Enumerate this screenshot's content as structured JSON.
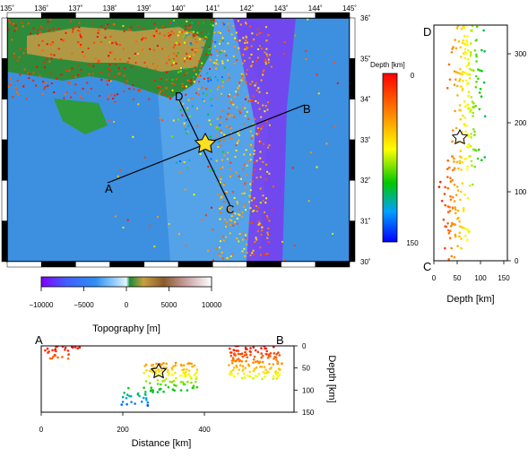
{
  "main_map": {
    "lon_ticks": [
      "135˚",
      "136˚",
      "137˚",
      "138˚",
      "139˚",
      "140˚",
      "141˚",
      "142˚",
      "143˚",
      "144˚",
      "145˚"
    ],
    "lat_ticks": [
      "36˚",
      "35˚",
      "34˚",
      "33˚",
      "32˚",
      "31˚",
      "30˚"
    ],
    "lon_range": [
      135,
      145
    ],
    "lat_range": [
      30,
      36
    ],
    "profile_labels": {
      "a": "A",
      "b": "B",
      "c": "C",
      "d": "D"
    },
    "epicenter_marker": "star-icon"
  },
  "depth_colorbar": {
    "title": "Depth [km]",
    "tick_top": "0",
    "tick_bottom": "150",
    "range": [
      0,
      150
    ],
    "colors": [
      "#ff0000",
      "#ff8000",
      "#ffff00",
      "#00cc00",
      "#00a0ff",
      "#0000ff"
    ]
  },
  "topography_colorbar": {
    "title": "Topography [m]",
    "ticks": [
      "−10000",
      "−5000",
      "0",
      "5000",
      "10000"
    ],
    "range": [
      -10000,
      10000
    ]
  },
  "section_ab": {
    "end_left": "A",
    "end_right": "B",
    "x_ticks": [
      "0",
      "200",
      "400"
    ],
    "y_ticks": [
      "0",
      "50",
      "100",
      "150"
    ],
    "xlabel": "Distance [km]",
    "ylabel": "Depth [km]"
  },
  "section_cd": {
    "end_top": "D",
    "end_bottom": "C",
    "y_ticks": [
      "300",
      "200",
      "100",
      "0"
    ],
    "x_ticks": [
      "0",
      "50",
      "100",
      "150"
    ],
    "xlabel": "Depth [km]"
  }
}
